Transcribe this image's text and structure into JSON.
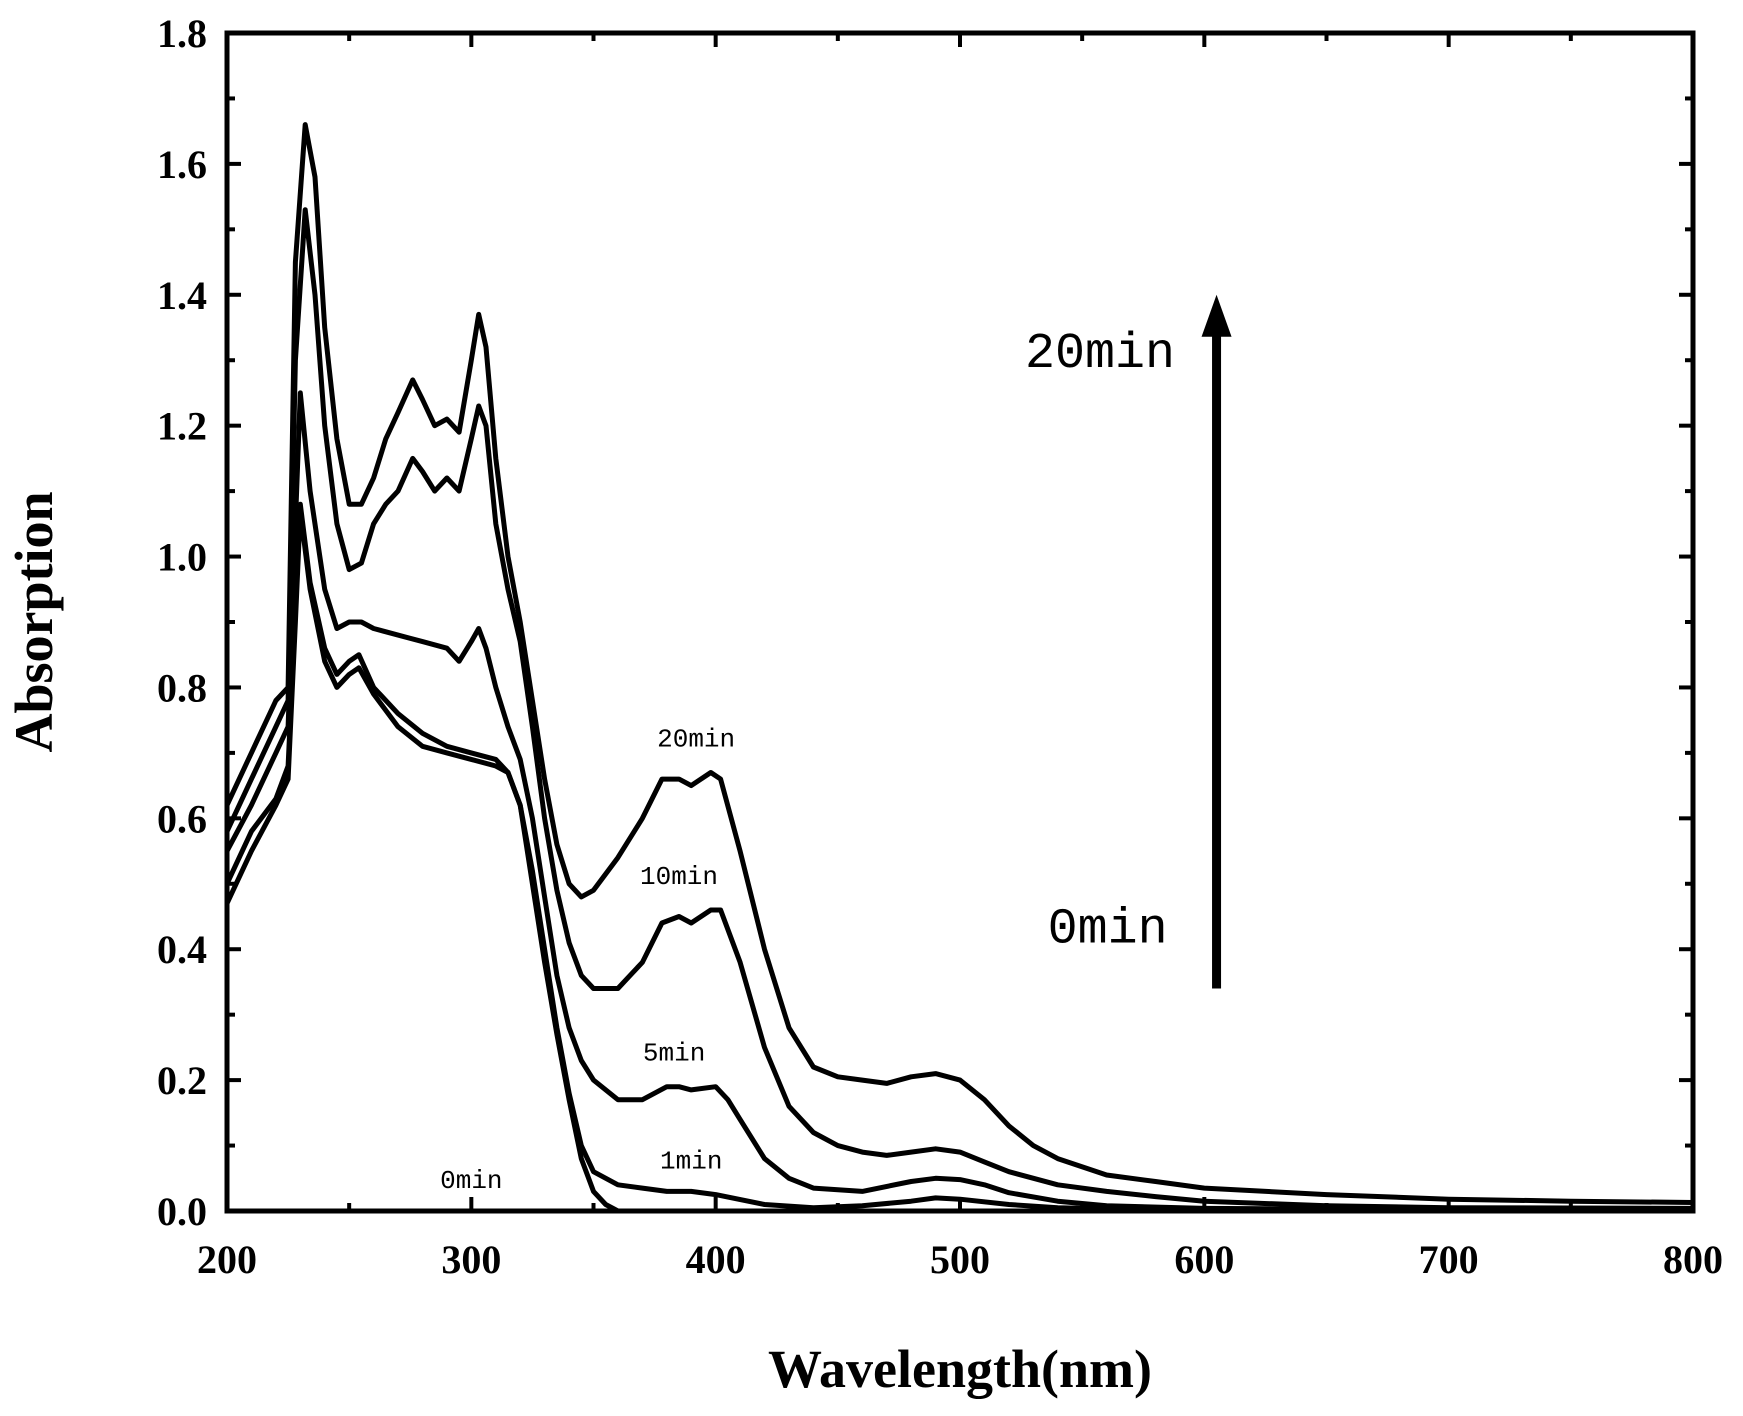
{
  "chart_data": {
    "type": "line",
    "title": "",
    "xlabel": "Wavelength(nm)",
    "ylabel": "Absorption",
    "xlim": [
      200,
      800
    ],
    "ylim": [
      0,
      1.8
    ],
    "x_ticks": [
      "200",
      "300",
      "400",
      "500",
      "600",
      "700",
      "800"
    ],
    "y_ticks": [
      "0.0",
      "0.2",
      "0.4",
      "0.6",
      "0.8",
      "1.0",
      "1.2",
      "1.4",
      "1.6",
      "1.8"
    ],
    "line_color": "#000000",
    "series": [
      {
        "name": "0min",
        "points": [
          [
            200,
            0.47
          ],
          [
            210,
            0.55
          ],
          [
            220,
            0.62
          ],
          [
            225,
            0.66
          ],
          [
            228,
            0.9
          ],
          [
            230,
            1.07
          ],
          [
            234,
            0.95
          ],
          [
            240,
            0.84
          ],
          [
            245,
            0.8
          ],
          [
            250,
            0.82
          ],
          [
            254,
            0.83
          ],
          [
            260,
            0.79
          ],
          [
            270,
            0.74
          ],
          [
            280,
            0.71
          ],
          [
            290,
            0.7
          ],
          [
            300,
            0.69
          ],
          [
            310,
            0.68
          ],
          [
            315,
            0.67
          ],
          [
            320,
            0.62
          ],
          [
            325,
            0.5
          ],
          [
            330,
            0.38
          ],
          [
            335,
            0.27
          ],
          [
            340,
            0.17
          ],
          [
            345,
            0.08
          ],
          [
            350,
            0.03
          ],
          [
            355,
            0.01
          ],
          [
            360,
            0.0
          ],
          [
            400,
            0.0
          ],
          [
            500,
            0.0
          ],
          [
            600,
            0.0
          ],
          [
            700,
            0.0
          ],
          [
            800,
            0.0
          ]
        ]
      },
      {
        "name": "1min",
        "points": [
          [
            200,
            0.5
          ],
          [
            210,
            0.58
          ],
          [
            220,
            0.63
          ],
          [
            225,
            0.68
          ],
          [
            228,
            0.92
          ],
          [
            230,
            1.08
          ],
          [
            234,
            0.96
          ],
          [
            240,
            0.86
          ],
          [
            245,
            0.82
          ],
          [
            250,
            0.84
          ],
          [
            254,
            0.85
          ],
          [
            260,
            0.8
          ],
          [
            270,
            0.76
          ],
          [
            280,
            0.73
          ],
          [
            290,
            0.71
          ],
          [
            300,
            0.7
          ],
          [
            310,
            0.69
          ],
          [
            315,
            0.67
          ],
          [
            320,
            0.62
          ],
          [
            325,
            0.52
          ],
          [
            330,
            0.4
          ],
          [
            335,
            0.28
          ],
          [
            340,
            0.18
          ],
          [
            345,
            0.1
          ],
          [
            350,
            0.06
          ],
          [
            360,
            0.04
          ],
          [
            370,
            0.035
          ],
          [
            380,
            0.03
          ],
          [
            390,
            0.03
          ],
          [
            400,
            0.025
          ],
          [
            420,
            0.01
          ],
          [
            440,
            0.005
          ],
          [
            460,
            0.008
          ],
          [
            480,
            0.015
          ],
          [
            490,
            0.02
          ],
          [
            500,
            0.018
          ],
          [
            520,
            0.01
          ],
          [
            540,
            0.005
          ],
          [
            600,
            0.0
          ],
          [
            700,
            0.0
          ],
          [
            800,
            0.0
          ]
        ]
      },
      {
        "name": "5min",
        "points": [
          [
            200,
            0.55
          ],
          [
            210,
            0.62
          ],
          [
            220,
            0.7
          ],
          [
            225,
            0.74
          ],
          [
            228,
            1.05
          ],
          [
            230,
            1.25
          ],
          [
            234,
            1.1
          ],
          [
            240,
            0.95
          ],
          [
            245,
            0.89
          ],
          [
            250,
            0.9
          ],
          [
            255,
            0.9
          ],
          [
            260,
            0.89
          ],
          [
            270,
            0.88
          ],
          [
            280,
            0.87
          ],
          [
            290,
            0.86
          ],
          [
            295,
            0.84
          ],
          [
            300,
            0.87
          ],
          [
            303,
            0.89
          ],
          [
            306,
            0.86
          ],
          [
            310,
            0.8
          ],
          [
            315,
            0.74
          ],
          [
            320,
            0.69
          ],
          [
            325,
            0.6
          ],
          [
            330,
            0.48
          ],
          [
            335,
            0.36
          ],
          [
            340,
            0.28
          ],
          [
            345,
            0.23
          ],
          [
            350,
            0.2
          ],
          [
            360,
            0.17
          ],
          [
            370,
            0.17
          ],
          [
            380,
            0.19
          ],
          [
            385,
            0.19
          ],
          [
            390,
            0.185
          ],
          [
            400,
            0.19
          ],
          [
            405,
            0.17
          ],
          [
            410,
            0.14
          ],
          [
            420,
            0.08
          ],
          [
            430,
            0.05
          ],
          [
            440,
            0.035
          ],
          [
            460,
            0.03
          ],
          [
            480,
            0.045
          ],
          [
            490,
            0.05
          ],
          [
            500,
            0.048
          ],
          [
            510,
            0.04
          ],
          [
            520,
            0.028
          ],
          [
            540,
            0.015
          ],
          [
            560,
            0.008
          ],
          [
            600,
            0.004
          ],
          [
            700,
            0.002
          ],
          [
            800,
            0.002
          ]
        ]
      },
      {
        "name": "10min",
        "points": [
          [
            200,
            0.58
          ],
          [
            210,
            0.66
          ],
          [
            220,
            0.74
          ],
          [
            225,
            0.78
          ],
          [
            228,
            1.3
          ],
          [
            232,
            1.53
          ],
          [
            236,
            1.4
          ],
          [
            240,
            1.2
          ],
          [
            245,
            1.05
          ],
          [
            250,
            0.98
          ],
          [
            255,
            0.99
          ],
          [
            260,
            1.05
          ],
          [
            265,
            1.08
          ],
          [
            270,
            1.1
          ],
          [
            276,
            1.15
          ],
          [
            280,
            1.13
          ],
          [
            285,
            1.1
          ],
          [
            290,
            1.12
          ],
          [
            295,
            1.1
          ],
          [
            300,
            1.18
          ],
          [
            303,
            1.23
          ],
          [
            306,
            1.2
          ],
          [
            310,
            1.05
          ],
          [
            315,
            0.95
          ],
          [
            320,
            0.87
          ],
          [
            325,
            0.74
          ],
          [
            330,
            0.6
          ],
          [
            335,
            0.49
          ],
          [
            340,
            0.41
          ],
          [
            345,
            0.36
          ],
          [
            350,
            0.34
          ],
          [
            360,
            0.34
          ],
          [
            370,
            0.38
          ],
          [
            378,
            0.44
          ],
          [
            385,
            0.45
          ],
          [
            390,
            0.44
          ],
          [
            398,
            0.46
          ],
          [
            402,
            0.46
          ],
          [
            410,
            0.38
          ],
          [
            420,
            0.25
          ],
          [
            430,
            0.16
          ],
          [
            440,
            0.12
          ],
          [
            450,
            0.1
          ],
          [
            460,
            0.09
          ],
          [
            470,
            0.085
          ],
          [
            480,
            0.09
          ],
          [
            490,
            0.095
          ],
          [
            500,
            0.09
          ],
          [
            510,
            0.075
          ],
          [
            520,
            0.06
          ],
          [
            540,
            0.04
          ],
          [
            560,
            0.03
          ],
          [
            580,
            0.022
          ],
          [
            600,
            0.015
          ],
          [
            650,
            0.008
          ],
          [
            700,
            0.005
          ],
          [
            800,
            0.004
          ]
        ]
      },
      {
        "name": "20min",
        "points": [
          [
            200,
            0.62
          ],
          [
            210,
            0.7
          ],
          [
            220,
            0.78
          ],
          [
            225,
            0.8
          ],
          [
            228,
            1.45
          ],
          [
            232,
            1.66
          ],
          [
            236,
            1.58
          ],
          [
            240,
            1.35
          ],
          [
            245,
            1.18
          ],
          [
            250,
            1.08
          ],
          [
            255,
            1.08
          ],
          [
            260,
            1.12
          ],
          [
            265,
            1.18
          ],
          [
            270,
            1.22
          ],
          [
            276,
            1.27
          ],
          [
            280,
            1.24
          ],
          [
            285,
            1.2
          ],
          [
            290,
            1.21
          ],
          [
            295,
            1.19
          ],
          [
            300,
            1.3
          ],
          [
            303,
            1.37
          ],
          [
            306,
            1.32
          ],
          [
            310,
            1.15
          ],
          [
            315,
            1.0
          ],
          [
            320,
            0.9
          ],
          [
            325,
            0.78
          ],
          [
            330,
            0.66
          ],
          [
            335,
            0.56
          ],
          [
            340,
            0.5
          ],
          [
            345,
            0.48
          ],
          [
            350,
            0.49
          ],
          [
            360,
            0.54
          ],
          [
            370,
            0.6
          ],
          [
            378,
            0.66
          ],
          [
            385,
            0.66
          ],
          [
            390,
            0.65
          ],
          [
            398,
            0.67
          ],
          [
            402,
            0.66
          ],
          [
            410,
            0.55
          ],
          [
            420,
            0.4
          ],
          [
            430,
            0.28
          ],
          [
            440,
            0.22
          ],
          [
            450,
            0.205
          ],
          [
            460,
            0.2
          ],
          [
            470,
            0.195
          ],
          [
            480,
            0.205
          ],
          [
            490,
            0.21
          ],
          [
            500,
            0.2
          ],
          [
            510,
            0.17
          ],
          [
            520,
            0.13
          ],
          [
            530,
            0.1
          ],
          [
            540,
            0.08
          ],
          [
            560,
            0.055
          ],
          [
            580,
            0.045
          ],
          [
            600,
            0.035
          ],
          [
            650,
            0.025
          ],
          [
            700,
            0.018
          ],
          [
            750,
            0.015
          ],
          [
            800,
            0.013
          ]
        ]
      }
    ],
    "curve_labels": [
      {
        "text": "20min",
        "x": 392,
        "y": 0.71
      },
      {
        "text": "10min",
        "x": 385,
        "y": 0.5
      },
      {
        "text": "5min",
        "x": 383,
        "y": 0.23
      },
      {
        "text": "1min",
        "x": 390,
        "y": 0.065
      },
      {
        "text": "0min",
        "x": 300,
        "y": 0.035
      }
    ],
    "arrow": {
      "from": [
        605,
        0.34
      ],
      "to": [
        605,
        1.4
      ],
      "start_label": {
        "text": "0min",
        "x": 585,
        "y": 0.41
      },
      "end_label": {
        "text": "20min",
        "x": 588,
        "y": 1.29
      }
    }
  }
}
